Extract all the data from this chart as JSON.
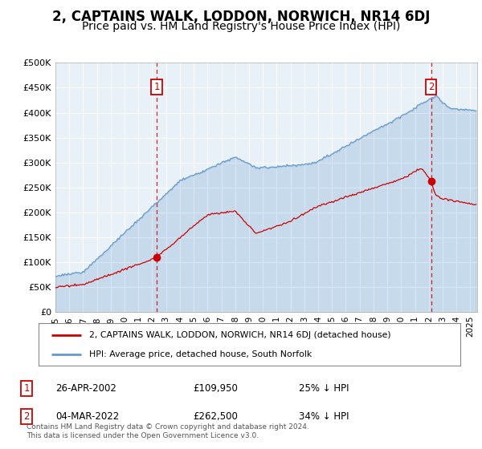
{
  "title": "2, CAPTAINS WALK, LODDON, NORWICH, NR14 6DJ",
  "subtitle": "Price paid vs. HM Land Registry's House Price Index (HPI)",
  "title_fontsize": 12,
  "subtitle_fontsize": 10,
  "plot_bg_color": "#e8f0f8",
  "hpi_color": "#6699cc",
  "hpi_fill_color": "#c5d8ee",
  "price_color": "#cc0000",
  "sale1": {
    "date_num": 2002.32,
    "price": 109950,
    "label": "1"
  },
  "sale2": {
    "date_num": 2022.17,
    "price": 262500,
    "label": "2"
  },
  "vline_color": "#cc0000",
  "annotation_box_color": "#cc0000",
  "ylim": [
    0,
    500000
  ],
  "yticks": [
    0,
    50000,
    100000,
    150000,
    200000,
    250000,
    300000,
    350000,
    400000,
    450000,
    500000
  ],
  "ytick_labels": [
    "£0",
    "£50K",
    "£100K",
    "£150K",
    "£200K",
    "£250K",
    "£300K",
    "£350K",
    "£400K",
    "£450K",
    "£500K"
  ],
  "xmin": 1995,
  "xmax": 2025.5,
  "legend_entries": [
    "2, CAPTAINS WALK, LODDON, NORWICH, NR14 6DJ (detached house)",
    "HPI: Average price, detached house, South Norfolk"
  ],
  "table_rows": [
    {
      "num": "1",
      "date": "26-APR-2002",
      "price": "£109,950",
      "pct": "25% ↓ HPI"
    },
    {
      "num": "2",
      "date": "04-MAR-2022",
      "price": "£262,500",
      "pct": "34% ↓ HPI"
    }
  ],
  "footnote": "Contains HM Land Registry data © Crown copyright and database right 2024.\nThis data is licensed under the Open Government Licence v3.0."
}
